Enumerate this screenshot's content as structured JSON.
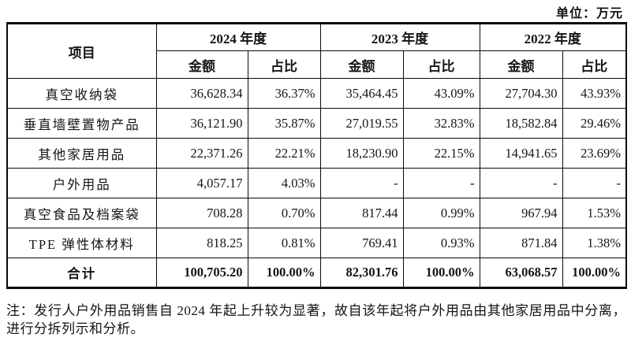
{
  "unit_label": "单位：万元",
  "table": {
    "item_header": "项目",
    "year_groups": [
      {
        "year": "2024 年度",
        "amount_label": "金额",
        "ratio_label": "占比"
      },
      {
        "year": "2023 年度",
        "amount_label": "金额",
        "ratio_label": "占比"
      },
      {
        "year": "2022 年度",
        "amount_label": "金额",
        "ratio_label": "占比"
      }
    ],
    "rows": [
      {
        "item": "真空收纳袋",
        "values": [
          "36,628.34",
          "36.37%",
          "35,464.45",
          "43.09%",
          "27,704.30",
          "43.93%"
        ]
      },
      {
        "item": "垂直墙壁置物产品",
        "values": [
          "36,121.90",
          "35.87%",
          "27,019.55",
          "32.83%",
          "18,582.84",
          "29.46%"
        ]
      },
      {
        "item": "其他家居用品",
        "values": [
          "22,371.26",
          "22.21%",
          "18,230.90",
          "22.15%",
          "14,941.65",
          "23.69%"
        ]
      },
      {
        "item": "户外用品",
        "values": [
          "4,057.17",
          "4.03%",
          "-",
          "-",
          "-",
          "-"
        ]
      },
      {
        "item": "真空食品及档案袋",
        "values": [
          "708.28",
          "0.70%",
          "817.44",
          "0.99%",
          "967.94",
          "1.53%"
        ]
      },
      {
        "item": "TPE 弹性体材料",
        "values": [
          "818.25",
          "0.81%",
          "769.41",
          "0.93%",
          "871.84",
          "1.38%"
        ]
      }
    ],
    "total_row": {
      "item": "合计",
      "values": [
        "100,705.20",
        "100.00%",
        "82,301.76",
        "100.00%",
        "63,068.57",
        "100.00%"
      ]
    }
  },
  "note": "注：发行人户外用品销售自 2024 年起上升较为显著，故自该年起将户外用品由其他家居用品中分离，进行分拆列示和分析。"
}
